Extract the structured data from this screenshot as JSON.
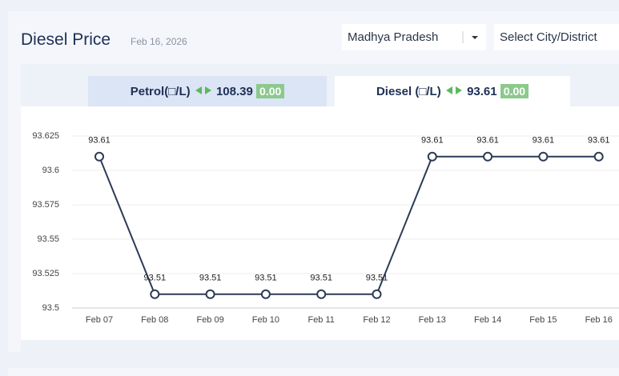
{
  "header": {
    "title": "Diesel Price",
    "date": "Feb 16, 2026",
    "state": "Madhya Pradesh",
    "city": "Select City/District"
  },
  "tabs": [
    {
      "label": "Petrol(□/L)",
      "price": "108.39",
      "change": "0.00"
    },
    {
      "label": "Diesel (□/L)",
      "price": "93.61",
      "change": "0.00"
    }
  ],
  "chart_data": {
    "type": "line",
    "categories": [
      "Feb 07",
      "Feb 08",
      "Feb 09",
      "Feb 10",
      "Feb 11",
      "Feb 12",
      "Feb 13",
      "Feb 14",
      "Feb 15",
      "Feb 16"
    ],
    "values": [
      93.61,
      93.51,
      93.51,
      93.51,
      93.51,
      93.51,
      93.61,
      93.61,
      93.61,
      93.61
    ],
    "color": "#2b3a55",
    "ylim": [
      93.5,
      93.625
    ],
    "yticks": [
      93.5,
      93.525,
      93.55,
      93.575,
      93.6,
      93.625
    ],
    "grid": true
  }
}
